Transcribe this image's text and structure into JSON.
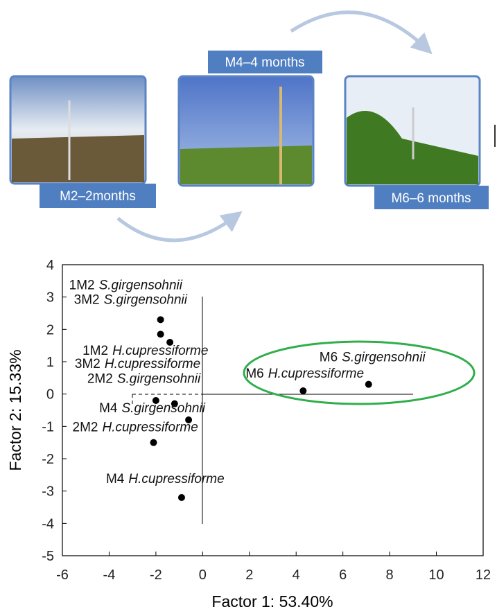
{
  "timeline": {
    "labels": [
      "M2–2months",
      "M4–4 months",
      "M6–6 months"
    ]
  },
  "chart_data": {
    "type": "scatter",
    "xlabel": "Factor 1: 53.40%",
    "ylabel": "Factor 2: 15.33%",
    "x": [
      -1.8,
      -1.8,
      -1.4,
      -2.0,
      -1.2,
      -0.6,
      -2.1,
      -0.9,
      4.3,
      7.1
    ],
    "y": [
      2.3,
      1.85,
      1.6,
      -0.2,
      -0.3,
      -0.8,
      -1.5,
      -3.2,
      0.1,
      0.3
    ],
    "point_labels": [
      {
        "sample": "1M2",
        "species": "S.girgensohnii"
      },
      {
        "sample": "3M2",
        "species": "S.girgensohnii"
      },
      {
        "sample": "1M2",
        "species": "H.cupressiforme"
      },
      {
        "sample": "3M2",
        "species": "H.cupressiforme"
      },
      {
        "sample": "2M2",
        "species": "S.girgensohnii"
      },
      {
        "sample": "M4",
        "species": "S.girgensohnii"
      },
      {
        "sample": "2M2",
        "species": "H.cupressiforme"
      },
      {
        "sample": "M4",
        "species": "H.cupressiforme"
      },
      {
        "sample": "M6",
        "species": "H.cupressiforme"
      },
      {
        "sample": "M6",
        "species": "S.girgensohnii"
      }
    ],
    "color": "#000000",
    "xlim": [
      -6,
      12
    ],
    "xticks": [
      -6,
      -4,
      -2,
      0,
      2,
      4,
      6,
      8,
      10,
      12
    ],
    "ylim": [
      -5,
      4
    ],
    "yticks": [
      -5,
      -4,
      -3,
      -2,
      -1,
      0,
      1,
      2,
      3,
      4
    ]
  }
}
